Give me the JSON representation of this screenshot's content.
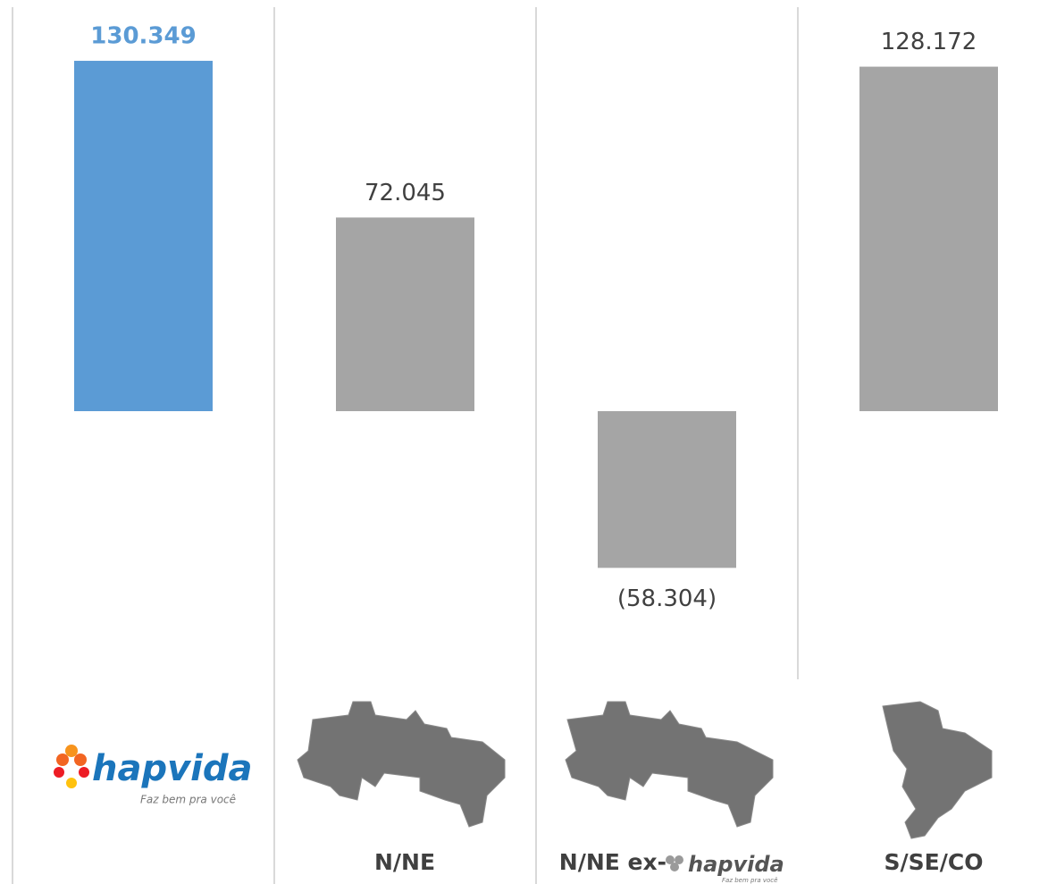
{
  "chart_data": {
    "type": "bar",
    "categories": [
      null,
      "N/NE",
      "N/NE ex-",
      "S/SE/CO"
    ],
    "values": [
      130.349,
      72.045,
      -58.304,
      128.172
    ],
    "value_labels": [
      "130.349",
      "72.045",
      "(58.304)",
      "128.172"
    ],
    "colors": [
      "#5b9bd5",
      "#a5a5a5",
      "#a5a5a5",
      "#a5a5a5"
    ],
    "logo": {
      "name": "hapvida",
      "tagline": "Faz bem pra você"
    }
  }
}
